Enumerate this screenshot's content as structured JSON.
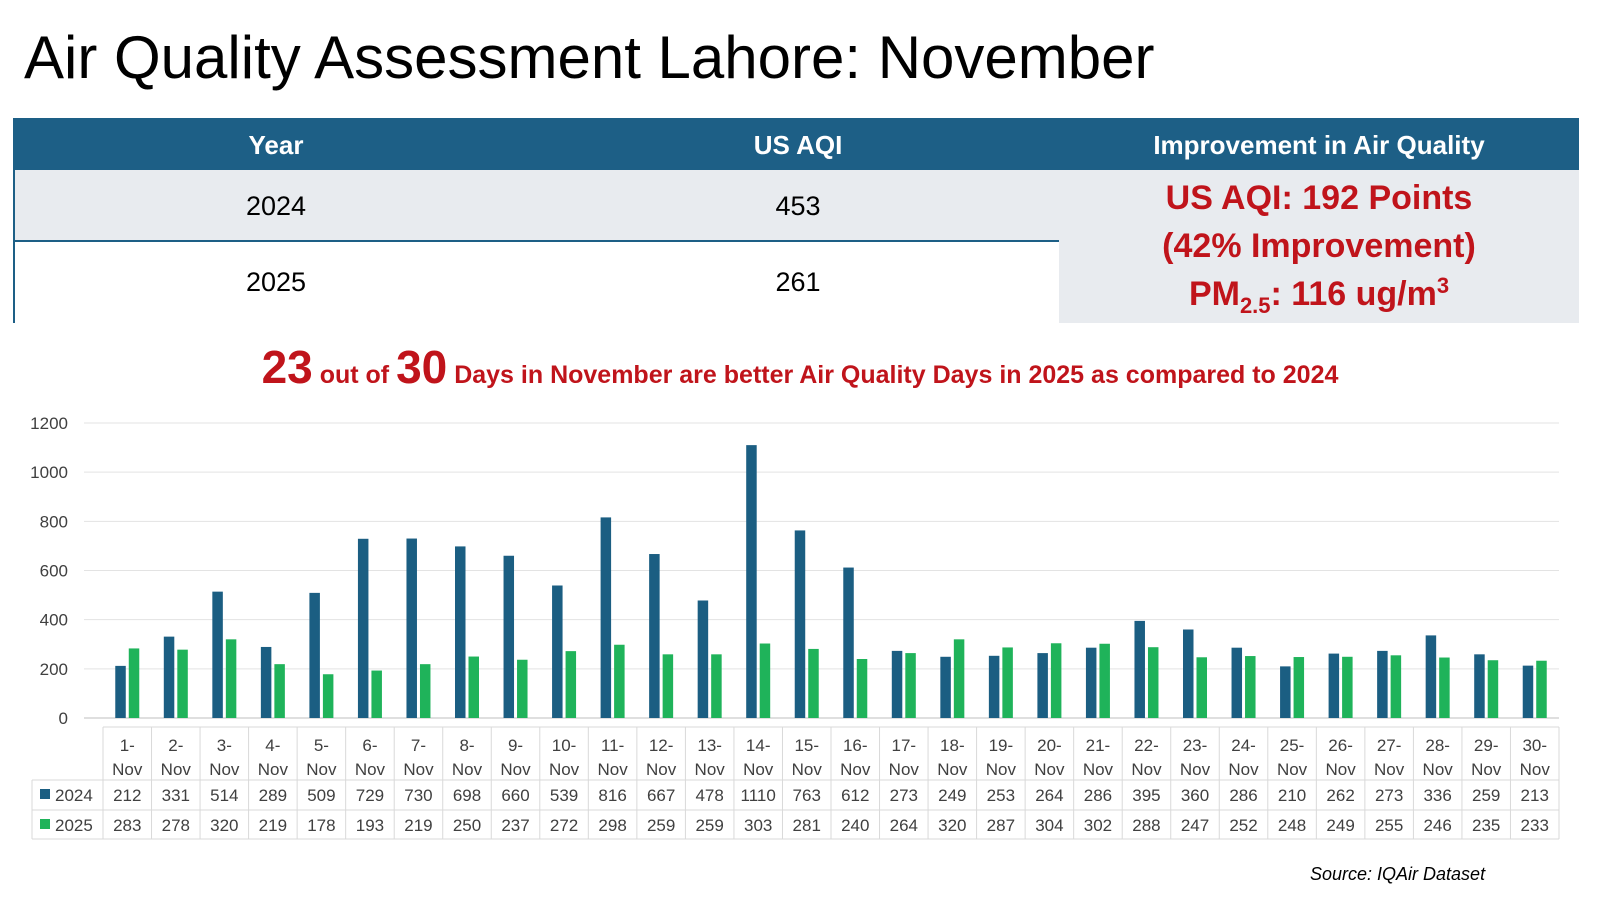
{
  "title": "Air Quality Assessment Lahore: November",
  "summary_table": {
    "headers": [
      "Year",
      "US AQI",
      "Improvement in Air Quality"
    ],
    "rows": [
      {
        "year": "2024",
        "aqi": "453"
      },
      {
        "year": "2025",
        "aqi": "261"
      }
    ],
    "improvement": {
      "line1": "US AQI: 192 Points",
      "line2": "(42% Improvement)",
      "pm_prefix": "PM",
      "pm_sub": "2.5",
      "pm_value": ": 116 ug/m",
      "pm_sup": "3"
    }
  },
  "headline": {
    "count": "23",
    "mid": " out of ",
    "total": "30",
    "rest": " Days in November are better Air Quality Days in 2025 as compared to 2024"
  },
  "colors": {
    "header_blue": "#1d5f86",
    "series_2024": "#1b5e82",
    "series_2025": "#1fb35a",
    "accent_red": "#c0141b"
  },
  "chart_data": {
    "type": "bar",
    "categories": [
      "1-Nov",
      "2-Nov",
      "3-Nov",
      "4-Nov",
      "5-Nov",
      "6-Nov",
      "7-Nov",
      "8-Nov",
      "9-Nov",
      "10-Nov",
      "11-Nov",
      "12-Nov",
      "13-Nov",
      "14-Nov",
      "15-Nov",
      "16-Nov",
      "17-Nov",
      "18-Nov",
      "19-Nov",
      "20-Nov",
      "21-Nov",
      "22-Nov",
      "23-Nov",
      "24-Nov",
      "25-Nov",
      "26-Nov",
      "27-Nov",
      "28-Nov",
      "29-Nov",
      "30-Nov"
    ],
    "series": [
      {
        "name": "2024",
        "values": [
          212,
          331,
          514,
          289,
          509,
          729,
          730,
          698,
          660,
          539,
          816,
          667,
          478,
          1110,
          763,
          612,
          273,
          249,
          253,
          264,
          286,
          395,
          360,
          286,
          210,
          262,
          273,
          336,
          259,
          213
        ]
      },
      {
        "name": "2025",
        "values": [
          283,
          278,
          320,
          219,
          178,
          193,
          219,
          250,
          237,
          272,
          298,
          259,
          259,
          303,
          281,
          240,
          264,
          320,
          287,
          304,
          302,
          288,
          247,
          252,
          248,
          249,
          255,
          246,
          235,
          233
        ]
      }
    ],
    "ylim": [
      0,
      1200
    ],
    "yticks": [
      0,
      200,
      400,
      600,
      800,
      1000,
      1200
    ],
    "grid": true,
    "data_table": true
  },
  "source": "Source: IQAir Dataset"
}
